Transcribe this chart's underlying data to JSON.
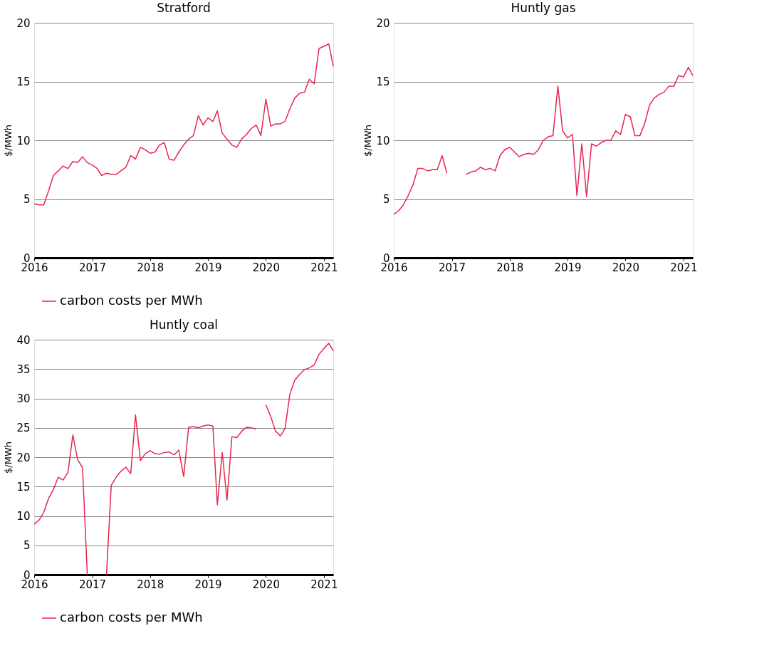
{
  "chart_data": [
    {
      "type": "line",
      "title": "Stratford",
      "ylabel": "$/MWh",
      "x": [
        "2016-01",
        "2016-02",
        "2016-03",
        "2016-04",
        "2016-05",
        "2016-06",
        "2016-07",
        "2016-08",
        "2016-09",
        "2016-10",
        "2016-11",
        "2016-12",
        "2017-01",
        "2017-02",
        "2017-03",
        "2017-04",
        "2017-05",
        "2017-06",
        "2017-07",
        "2017-08",
        "2017-09",
        "2017-10",
        "2017-11",
        "2017-12",
        "2018-01",
        "2018-02",
        "2018-03",
        "2018-04",
        "2018-05",
        "2018-06",
        "2018-07",
        "2018-08",
        "2018-09",
        "2018-10",
        "2018-11",
        "2018-12",
        "2019-01",
        "2019-02",
        "2019-03",
        "2019-04",
        "2019-05",
        "2019-06",
        "2019-07",
        "2019-08",
        "2019-09",
        "2019-10",
        "2019-11",
        "2019-12",
        "2020-01",
        "2020-02",
        "2020-03",
        "2020-04",
        "2020-05",
        "2020-06",
        "2020-07",
        "2020-08",
        "2020-09",
        "2020-10",
        "2020-11",
        "2020-12",
        "2021-01",
        "2021-02",
        "2021-03"
      ],
      "series": [
        {
          "color": "#e8264f",
          "values": [
            4.6,
            4.5,
            4.5,
            5.7,
            7.0,
            7.4,
            7.8,
            7.6,
            8.2,
            8.1,
            8.6,
            8.1,
            7.9,
            7.6,
            7.0,
            7.2,
            7.1,
            7.1,
            7.4,
            7.7,
            8.7,
            8.4,
            9.4,
            9.2,
            8.9,
            9.0,
            9.6,
            9.8,
            8.4,
            8.3,
            9.0,
            9.6,
            10.1,
            10.4,
            12.1,
            11.3,
            11.9,
            11.6,
            12.5,
            10.6,
            10.1,
            9.6,
            9.4,
            10.1,
            10.5,
            11.0,
            11.3,
            10.4,
            13.5,
            11.2,
            11.4,
            11.4,
            11.6,
            12.7,
            13.6,
            14.0,
            14.1,
            15.2,
            14.8,
            17.8,
            18.0,
            18.2,
            16.3
          ]
        }
      ],
      "xlim": [
        "2016-01",
        "2021-03"
      ],
      "xticks": [
        "2016",
        "2017",
        "2018",
        "2019",
        "2020",
        "2021"
      ],
      "ylim": [
        0,
        20
      ],
      "yticks": [
        0,
        5,
        10,
        15,
        20
      ],
      "grid": "y",
      "legend": false
    },
    {
      "type": "line",
      "title": "Huntly gas",
      "ylabel": "$/MWh",
      "x": [
        "2016-01",
        "2016-02",
        "2016-03",
        "2016-04",
        "2016-05",
        "2016-06",
        "2016-07",
        "2016-08",
        "2016-09",
        "2016-10",
        "2016-11",
        "2016-12",
        "2017-01",
        "2017-02",
        "2017-03",
        "2017-04",
        "2017-05",
        "2017-06",
        "2017-07",
        "2017-08",
        "2017-09",
        "2017-10",
        "2017-11",
        "2017-12",
        "2018-01",
        "2018-02",
        "2018-03",
        "2018-04",
        "2018-05",
        "2018-06",
        "2018-07",
        "2018-08",
        "2018-09",
        "2018-10",
        "2018-11",
        "2018-12",
        "2019-01",
        "2019-02",
        "2019-03",
        "2019-04",
        "2019-05",
        "2019-06",
        "2019-07",
        "2019-08",
        "2019-09",
        "2019-10",
        "2019-11",
        "2019-12",
        "2020-01",
        "2020-02",
        "2020-03",
        "2020-04",
        "2020-05",
        "2020-06",
        "2020-07",
        "2020-08",
        "2020-09",
        "2020-10",
        "2020-11",
        "2020-12",
        "2021-01",
        "2021-02",
        "2021-03"
      ],
      "series": [
        {
          "name": "carbon costs per MWh",
          "color": "#e8264f",
          "values": [
            3.7,
            4.0,
            4.5,
            5.3,
            6.2,
            7.6,
            7.6,
            7.4,
            7.5,
            7.5,
            8.7,
            7.2,
            null,
            null,
            null,
            7.1,
            7.3,
            7.4,
            7.7,
            7.5,
            7.6,
            7.4,
            8.7,
            9.2,
            9.4,
            9.0,
            8.6,
            8.8,
            8.9,
            8.8,
            9.2,
            10.0,
            10.3,
            10.4,
            14.6,
            10.8,
            10.2,
            10.5,
            5.3,
            9.7,
            5.2,
            9.7,
            9.5,
            9.8,
            10.0,
            10.0,
            10.8,
            10.5,
            12.2,
            12.0,
            10.4,
            10.4,
            11.4,
            13.0,
            13.6,
            13.9,
            14.1,
            14.6,
            14.6,
            15.5,
            15.4,
            16.2,
            15.5
          ]
        }
      ],
      "xlim": [
        "2016-01",
        "2021-03"
      ],
      "xticks": [
        "2016",
        "2017",
        "2018",
        "2019",
        "2020",
        "2021"
      ],
      "ylim": [
        0,
        20
      ],
      "yticks": [
        0,
        5,
        10,
        15,
        20
      ],
      "grid": "y",
      "legend": "bottom"
    },
    {
      "type": "line",
      "title": "Huntly coal",
      "ylabel": "$/MWh",
      "x": [
        "2016-01",
        "2016-02",
        "2016-03",
        "2016-04",
        "2016-05",
        "2016-06",
        "2016-07",
        "2016-08",
        "2016-09",
        "2016-10",
        "2016-11",
        "2016-12",
        "2017-01",
        "2017-02",
        "2017-03",
        "2017-04",
        "2017-05",
        "2017-06",
        "2017-07",
        "2017-08",
        "2017-09",
        "2017-10",
        "2017-11",
        "2017-12",
        "2018-01",
        "2018-02",
        "2018-03",
        "2018-04",
        "2018-05",
        "2018-06",
        "2018-07",
        "2018-08",
        "2018-09",
        "2018-10",
        "2018-11",
        "2018-12",
        "2019-01",
        "2019-02",
        "2019-03",
        "2019-04",
        "2019-05",
        "2019-06",
        "2019-07",
        "2019-08",
        "2019-09",
        "2019-10",
        "2019-11",
        "2019-12",
        "2020-01",
        "2020-02",
        "2020-03",
        "2020-04",
        "2020-05",
        "2020-06",
        "2020-07",
        "2020-08",
        "2020-09",
        "2020-10",
        "2020-11",
        "2020-12",
        "2021-01",
        "2021-02",
        "2021-03"
      ],
      "series": [
        {
          "name": "carbon costs per MWh",
          "color": "#e8264f",
          "values": [
            8.6,
            9.3,
            10.6,
            13.0,
            14.5,
            16.6,
            16.1,
            17.4,
            23.8,
            19.6,
            18.2,
            0,
            null,
            null,
            null,
            0,
            15.2,
            16.6,
            17.6,
            18.3,
            17.2,
            27.2,
            19.4,
            20.6,
            21.1,
            20.6,
            20.5,
            20.8,
            20.9,
            20.4,
            21.2,
            16.7,
            25.1,
            25.2,
            25.0,
            25.3,
            25.5,
            25.3,
            11.9,
            20.8,
            12.7,
            23.5,
            23.3,
            24.4,
            25.1,
            25.0,
            24.8,
            null,
            28.9,
            26.9,
            24.5,
            23.6,
            24.9,
            30.8,
            33.1,
            34.1,
            34.9,
            35.2,
            35.7,
            37.5,
            38.5,
            39.4,
            38.1
          ]
        }
      ],
      "xlim": [
        "2016-01",
        "2021-03"
      ],
      "xticks": [
        "2016",
        "2017",
        "2018",
        "2019",
        "2020",
        "2021"
      ],
      "ylim": [
        0,
        40
      ],
      "yticks": [
        0,
        5,
        10,
        15,
        20,
        25,
        30,
        35,
        40
      ],
      "grid": "y",
      "legend": "bottom"
    }
  ]
}
